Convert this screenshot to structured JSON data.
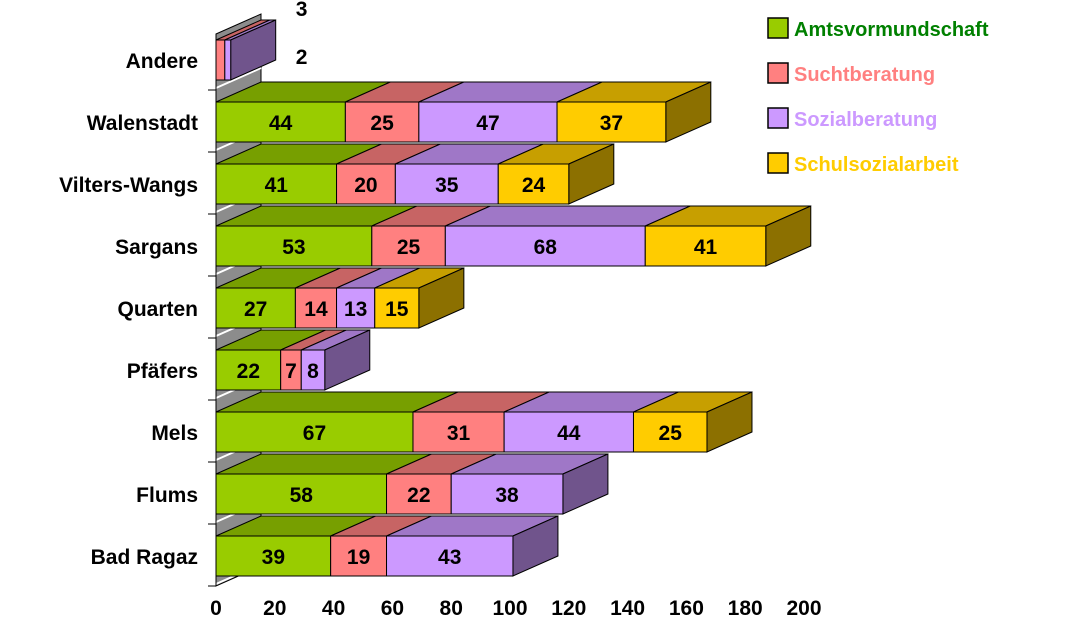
{
  "chart_data": {
    "type": "bar",
    "orientation": "horizontal",
    "stacked": true,
    "three_d": true,
    "categories": [
      "Bad Ragaz",
      "Flums",
      "Mels",
      "Pfäfers",
      "Quarten",
      "Sargans",
      "Vilters-Wangs",
      "Walenstadt",
      "Andere"
    ],
    "series": [
      {
        "name": "Amtsvormundschaft",
        "values": [
          39,
          58,
          67,
          22,
          27,
          53,
          41,
          44,
          0
        ]
      },
      {
        "name": "Suchtberatung",
        "values": [
          19,
          22,
          31,
          7,
          14,
          25,
          20,
          25,
          3
        ]
      },
      {
        "name": "Sozialberatung",
        "values": [
          43,
          38,
          44,
          8,
          13,
          68,
          35,
          47,
          2
        ]
      },
      {
        "name": "Schulsozialarbeit",
        "values": [
          0,
          0,
          25,
          0,
          15,
          41,
          24,
          37,
          0
        ]
      }
    ],
    "colors": {
      "Amtsvormundschaft": "#99CC00",
      "Suchtberatung": "#FF8080",
      "Sozialberatung": "#CC99FF",
      "Schulsozialarbeit": "#FFCC00"
    },
    "legend_text_colors": {
      "Amtsvormundschaft": "#008000",
      "Suchtberatung": "#FF8080",
      "Sozialberatung": "#CC99FF",
      "Schulsozialarbeit": "#FFCC00"
    },
    "xlim": [
      0,
      200
    ],
    "x_ticks": [
      "0",
      "20",
      "40",
      "60",
      "80",
      "100",
      "120",
      "140",
      "160",
      "180",
      "200"
    ],
    "legend_position": "top-right",
    "grid": false,
    "title": "",
    "xlabel": "",
    "ylabel": ""
  }
}
